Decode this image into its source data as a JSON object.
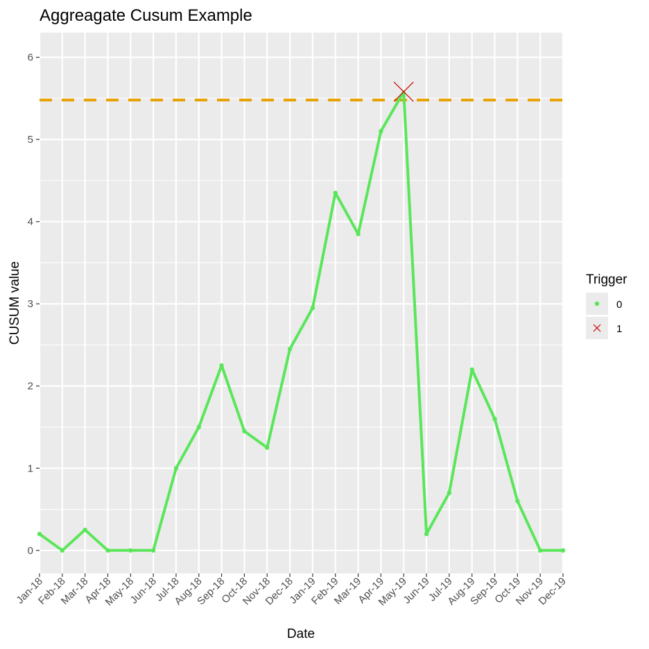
{
  "chart_data": {
    "type": "line",
    "title": "Aggreagate Cusum Example",
    "xlabel": "Date",
    "ylabel": "CUSUM value",
    "x": [
      "Jan-18",
      "Feb-18",
      "Mar-18",
      "Apr-18",
      "May-18",
      "Jun-18",
      "Jul-18",
      "Aug-18",
      "Sep-18",
      "Oct-18",
      "Nov-18",
      "Dec-18",
      "Jan-19",
      "Feb-19",
      "Mar-19",
      "Apr-19",
      "May-19",
      "Jun-19",
      "Jul-19",
      "Aug-19",
      "Sep-19",
      "Oct-19",
      "Nov-19",
      "Dec-19"
    ],
    "values": [
      0.2,
      0,
      0.25,
      0,
      0,
      0,
      1.0,
      1.5,
      2.25,
      1.45,
      1.25,
      2.45,
      2.95,
      4.35,
      3.85,
      5.1,
      5.58,
      0.2,
      0.7,
      2.2,
      1.6,
      0.6,
      0,
      0
    ],
    "trigger": [
      0,
      0,
      0,
      0,
      0,
      0,
      0,
      0,
      0,
      0,
      0,
      0,
      0,
      0,
      0,
      0,
      1,
      0,
      0,
      0,
      0,
      0,
      0,
      0
    ],
    "threshold": 5.48,
    "ylim": [
      -0.28,
      6.3
    ],
    "yticks": [
      0,
      1,
      2,
      3,
      4,
      5,
      6
    ],
    "grid": true,
    "legend": {
      "title": "Trigger",
      "position": "right",
      "items": [
        {
          "label": "0",
          "marker": "point",
          "color": "#5ae65a"
        },
        {
          "label": "1",
          "marker": "cross",
          "color": "#cc0000"
        }
      ]
    },
    "colors": {
      "line": "#5ae65a",
      "trigger_marker": "#cc0000",
      "threshold": "#e6a000",
      "panel": "#ebebeb",
      "grid": "#ffffff"
    }
  }
}
